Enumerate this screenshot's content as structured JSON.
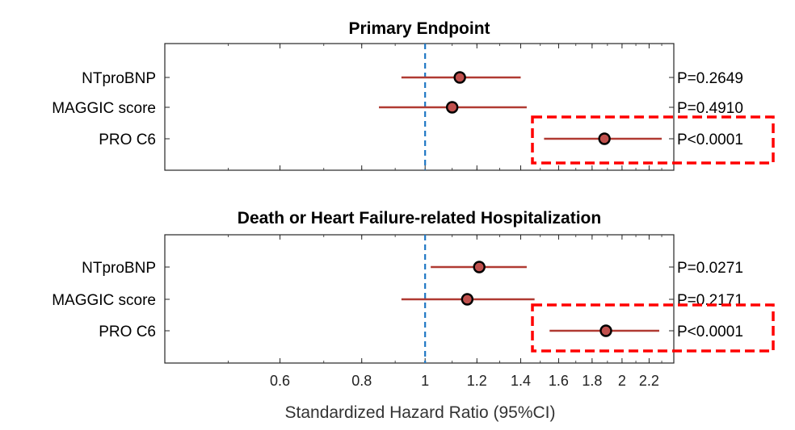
{
  "chart_data": {
    "type": "forest",
    "xlabel": "Standardized Hazard Ratio (95%CI)",
    "x_scale": "log",
    "xlim": [
      0.4,
      2.4
    ],
    "x_ticks": [
      0.6,
      0.8,
      1,
      1.2,
      1.4,
      1.6,
      1.8,
      2,
      2.2
    ],
    "x_tick_labels": [
      "0.6",
      "0.8",
      "1",
      "1.2",
      "1.4",
      "1.6",
      "1.8",
      "2",
      "2.2"
    ],
    "reference_line": 1,
    "colors": {
      "ci_line": "#b03a32",
      "point_fill": "#c0504d",
      "point_edge": "#000000",
      "reference": "#1f77c4",
      "highlight_box": "#ff0000"
    },
    "panels": [
      {
        "title": "Primary Endpoint",
        "rows": [
          {
            "label": "NTproBNP",
            "hr": 1.13,
            "ci_low": 0.92,
            "ci_high": 1.4,
            "p": "P=0.2649",
            "highlight": false
          },
          {
            "label": "MAGGIC score",
            "hr": 1.1,
            "ci_low": 0.85,
            "ci_high": 1.43,
            "p": "P=0.4910",
            "highlight": false
          },
          {
            "label": "PRO C6",
            "hr": 1.88,
            "ci_low": 1.52,
            "ci_high": 2.3,
            "p": "P<0.0001",
            "highlight": true
          }
        ]
      },
      {
        "title": "Death or Heart Failure-related Hospitalization",
        "rows": [
          {
            "label": "NTproBNP",
            "hr": 1.21,
            "ci_low": 1.02,
            "ci_high": 1.43,
            "p": "P=0.0271",
            "highlight": false
          },
          {
            "label": "MAGGIC score",
            "hr": 1.16,
            "ci_low": 0.92,
            "ci_high": 1.47,
            "p": "P=0.2171",
            "highlight": false
          },
          {
            "label": "PRO C6",
            "hr": 1.89,
            "ci_low": 1.55,
            "ci_high": 2.28,
            "p": "P<0.0001",
            "highlight": true
          }
        ]
      }
    ]
  }
}
